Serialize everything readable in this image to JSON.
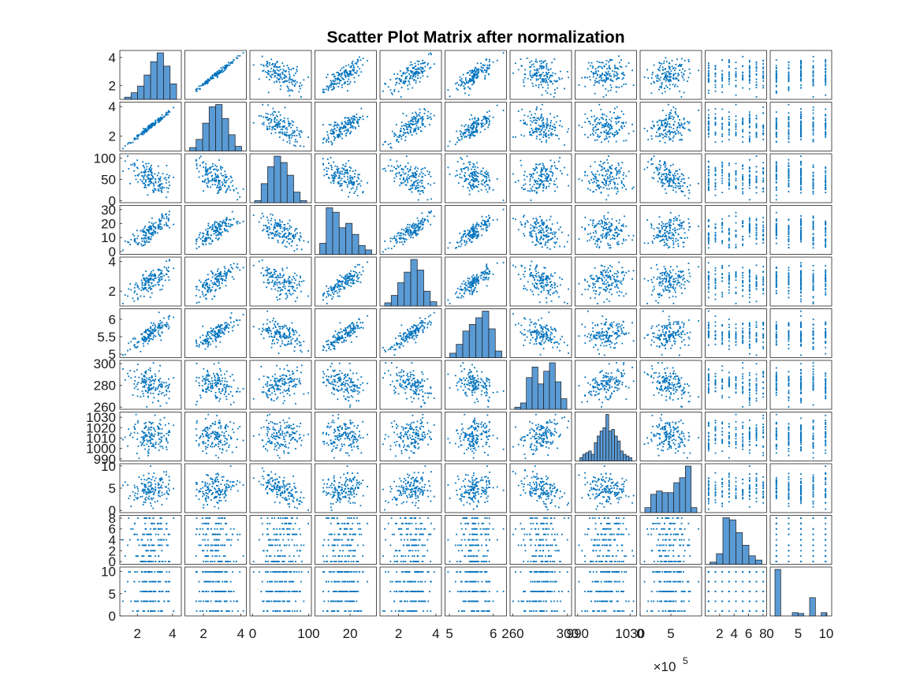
{
  "window": {
    "title": "Scatter Plot Matrix after normalization"
  },
  "chart_data": {
    "type": "scatter",
    "matrix": true,
    "title": "Scatter Plot Matrix after normalization",
    "variables_count": 11,
    "variables": [
      {
        "ylim": [
          1,
          4.5
        ],
        "xlim": [
          1,
          4.5
        ],
        "yticks": [
          2,
          4
        ],
        "xticks": [
          2,
          4
        ],
        "hist": [
          2,
          6,
          12,
          22,
          34,
          42,
          30,
          14
        ]
      },
      {
        "ylim": [
          1,
          4.3
        ],
        "xlim": [
          1,
          4.3
        ],
        "yticks": [
          2,
          4
        ],
        "xticks": [
          2,
          4
        ],
        "hist": [
          3,
          10,
          24,
          38,
          40,
          28,
          14,
          4
        ]
      },
      {
        "ylim": [
          -5,
          110
        ],
        "xlim": [
          -5,
          105
        ],
        "yticks": [
          0,
          50,
          100
        ],
        "xticks": [
          0,
          100
        ],
        "hist": [
          2,
          18,
          34,
          44,
          38,
          26,
          10,
          2
        ]
      },
      {
        "ylim": [
          -2,
          33
        ],
        "xlim": [
          0,
          35
        ],
        "yticks": [
          0,
          10,
          20,
          30
        ],
        "xticks": [
          20
        ],
        "hist": [
          10,
          42,
          38,
          24,
          28,
          18,
          8,
          4
        ]
      },
      {
        "ylim": [
          1,
          4.3
        ],
        "xlim": [
          1,
          4.3
        ],
        "yticks": [
          2,
          4
        ],
        "xticks": [
          2,
          4
        ],
        "hist": [
          3,
          10,
          22,
          32,
          44,
          34,
          14,
          4
        ]
      },
      {
        "ylim": [
          4.9,
          6.3
        ],
        "xlim": [
          4.9,
          6.3
        ],
        "yticks": [
          5,
          5.5,
          6
        ],
        "xticks": [
          5,
          6
        ],
        "hist": [
          4,
          12,
          24,
          30,
          36,
          42,
          26,
          6
        ]
      },
      {
        "ylim": [
          258,
          303
        ],
        "xlim": [
          258,
          303
        ],
        "yticks": [
          260,
          280,
          300
        ],
        "xticks": [
          260,
          300
        ],
        "hist": [
          2,
          6,
          30,
          40,
          24,
          36,
          44,
          26,
          10
        ]
      },
      {
        "ylim": [
          988,
          1035
        ],
        "xlim": [
          988,
          1035
        ],
        "yticks": [
          990,
          1000,
          1010,
          1020,
          1030
        ],
        "xticks": [
          990,
          1030
        ],
        "hist": [
          4,
          8,
          10,
          12,
          8,
          22,
          30,
          36,
          40,
          56,
          36,
          38,
          30,
          24,
          12,
          8,
          6,
          4
        ]
      },
      {
        "ylim": [
          -0.5,
          10.5
        ],
        "xlim": [
          0,
          10
        ],
        "yticks": [
          0,
          5,
          10
        ],
        "xticks": [
          0,
          5
        ],
        "hist": [
          6,
          22,
          26,
          24,
          24,
          36,
          42,
          56,
          6
        ]
      },
      {
        "ylim": [
          -0.5,
          8.5
        ],
        "xlim": [
          0,
          8.5
        ],
        "yticks": [
          0,
          2,
          4,
          6,
          8
        ],
        "xticks": [
          2,
          4,
          6,
          8
        ],
        "hist": [
          2,
          10,
          44,
          42,
          30,
          18,
          8,
          4
        ]
      },
      {
        "ylim": [
          0,
          11
        ],
        "xlim": [
          0,
          11
        ],
        "yticks": [
          0,
          5,
          10
        ],
        "xticks": [
          0,
          5,
          10
        ],
        "hist": [
          56,
          0,
          0,
          4,
          3,
          0,
          22,
          0,
          4
        ]
      }
    ],
    "pair_slopes": [
      [
        null,
        1.0,
        -0.55,
        0.78,
        0.72,
        0.82,
        -0.2,
        0.05,
        0.2,
        0.0,
        0.0
      ],
      [
        1.0,
        null,
        -0.55,
        0.78,
        0.72,
        0.82,
        -0.2,
        0.05,
        0.2,
        0.0,
        0.0
      ],
      [
        -0.55,
        -0.55,
        null,
        -0.6,
        -0.5,
        -0.5,
        0.3,
        0.0,
        -0.6,
        0.0,
        0.0
      ],
      [
        0.78,
        0.78,
        -0.6,
        null,
        0.85,
        0.85,
        -0.35,
        0.0,
        0.1,
        0.0,
        0.0
      ],
      [
        0.72,
        0.72,
        -0.5,
        0.85,
        null,
        0.85,
        -0.35,
        0.05,
        0.15,
        0.0,
        0.0
      ],
      [
        0.82,
        0.82,
        -0.5,
        0.85,
        0.85,
        null,
        -0.45,
        0.05,
        0.15,
        0.0,
        0.0
      ],
      [
        -0.2,
        -0.2,
        0.3,
        -0.35,
        -0.35,
        -0.45,
        null,
        0.3,
        -0.35,
        0.0,
        0.0
      ],
      [
        0.05,
        0.05,
        0.0,
        0.0,
        0.05,
        0.05,
        0.3,
        null,
        0.0,
        0.0,
        0.0
      ],
      [
        0.2,
        0.2,
        -0.6,
        0.1,
        0.15,
        0.15,
        -0.35,
        0.0,
        null,
        0.0,
        0.0
      ],
      [
        0.0,
        0.0,
        0.0,
        0.0,
        0.0,
        0.0,
        0.0,
        0.0,
        0.0,
        null,
        0.0
      ],
      [
        0.0,
        0.0,
        0.0,
        0.0,
        0.0,
        0.0,
        0.0,
        0.0,
        0.0,
        0.0,
        null
      ]
    ],
    "discrete_levels": {
      "9": [
        0,
        1,
        2,
        3,
        4,
        5,
        6,
        7,
        8
      ],
      "10": [
        1,
        5,
        6,
        9,
        10
      ]
    },
    "x_exponent_label": "×10",
    "x_exponent_power": "5",
    "x_exponent_column": 8,
    "grid": false,
    "legend": "none",
    "marker_color": "#0072BD",
    "hist_face_color": "#5B9BD5"
  }
}
